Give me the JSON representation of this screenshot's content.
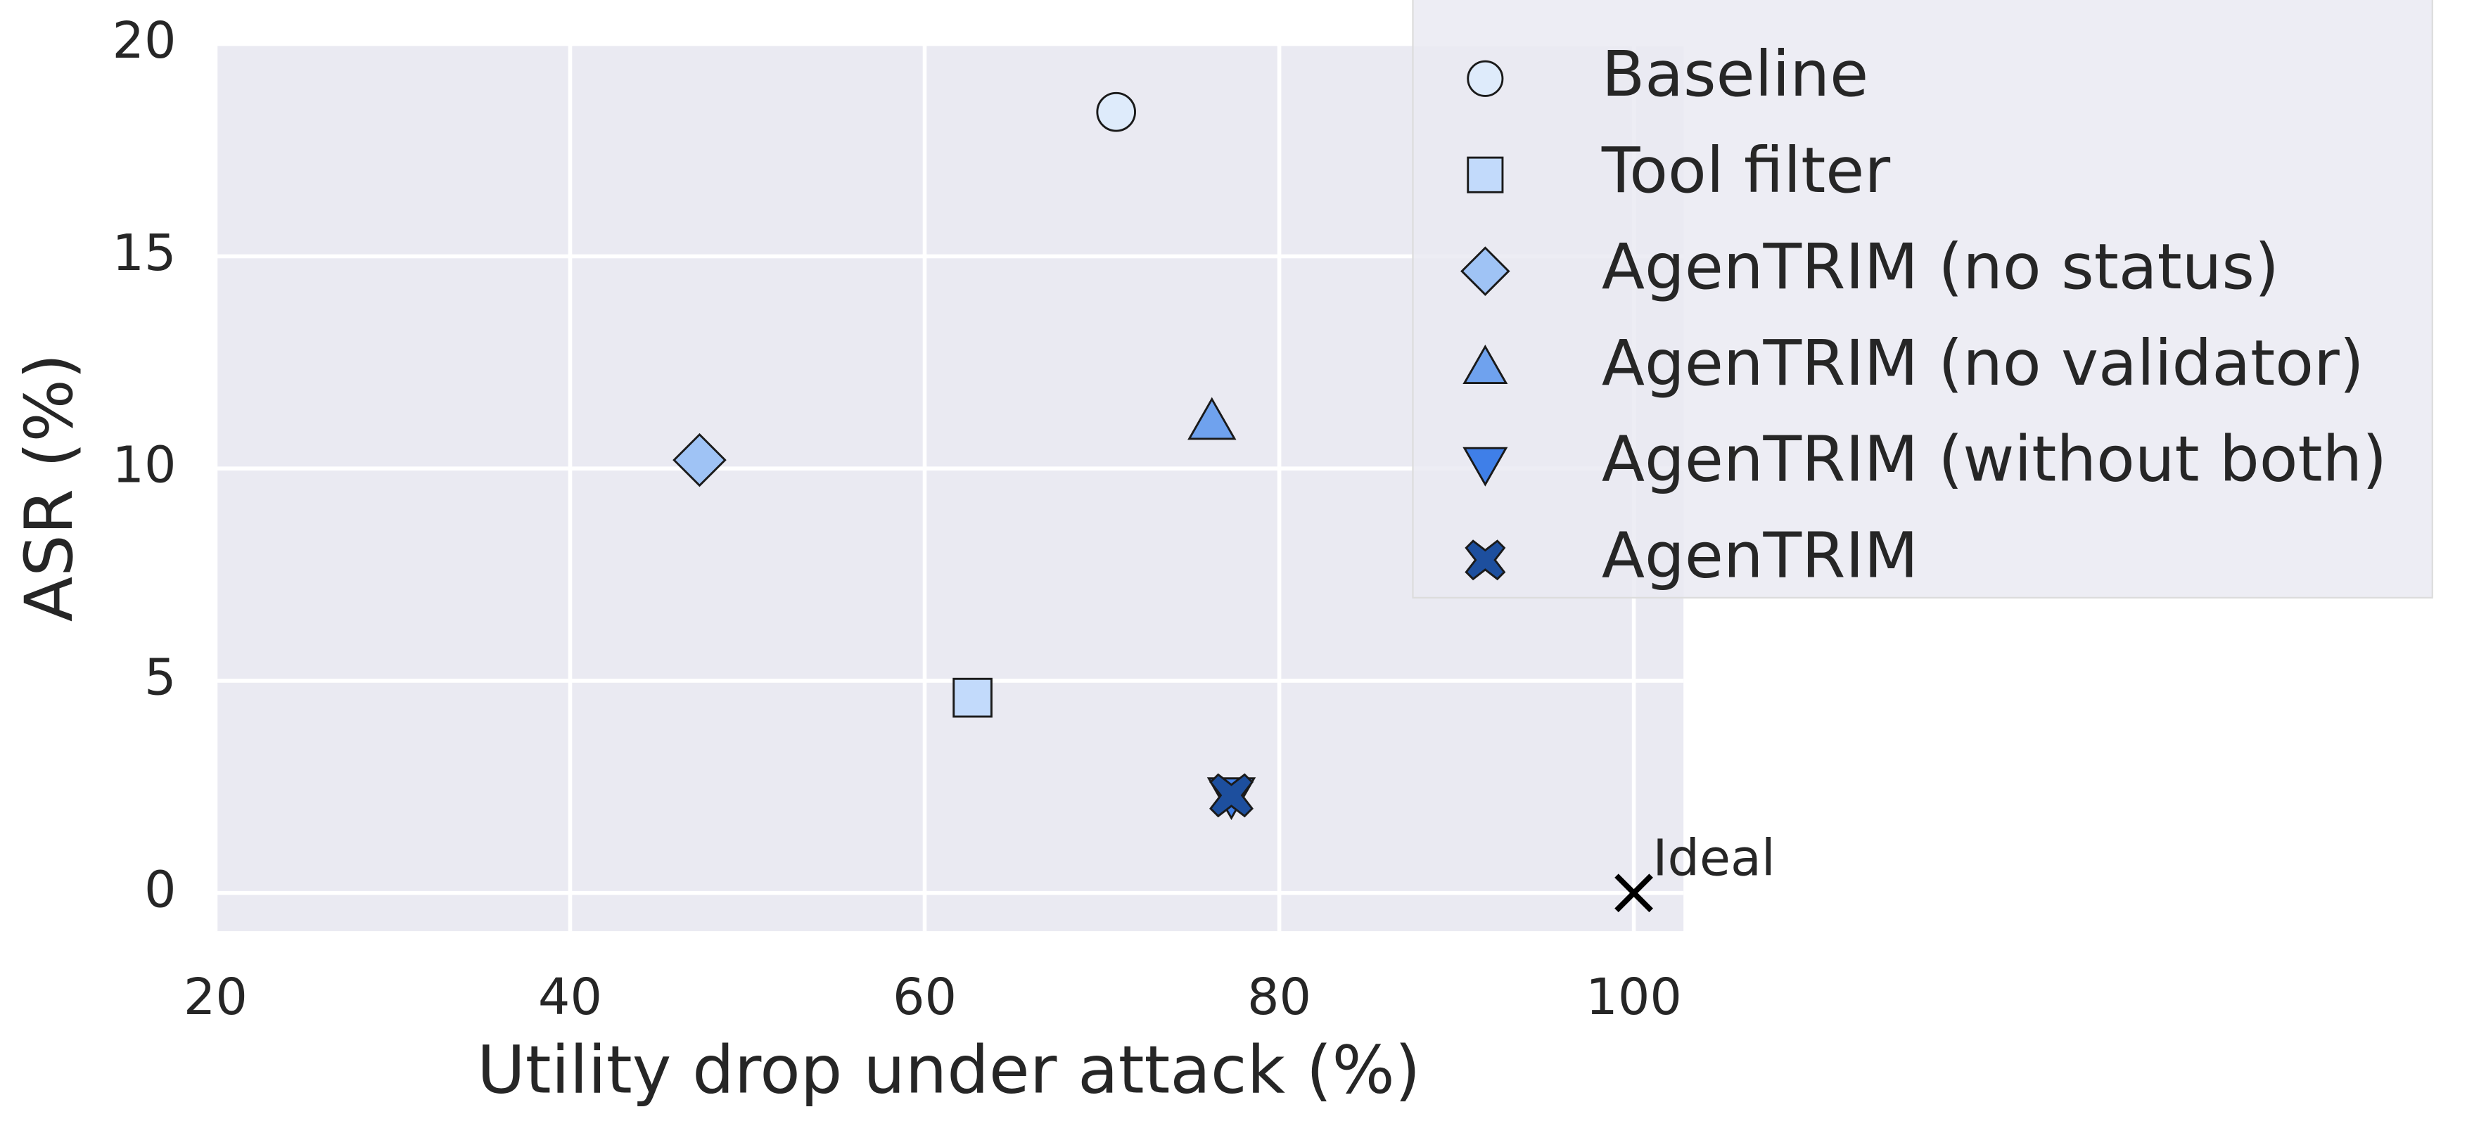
{
  "chart_data": {
    "type": "scatter",
    "x_label": "Utility drop under attack (%)",
    "y_label": "ASR (%)",
    "xlim": [
      20,
      102.8
    ],
    "ylim": [
      -0.9,
      20
    ],
    "xticks": [
      20,
      40,
      60,
      80,
      100
    ],
    "yticks": [
      0,
      5,
      10,
      15,
      20
    ],
    "grid": true,
    "legend_position": "upper right",
    "series": [
      {
        "name": "Baseline",
        "color": "#deebfb",
        "marker": "circle",
        "x": [
          70.8
        ],
        "values": [
          18.4
        ]
      },
      {
        "name": "Tool filter",
        "color": "#c2dafb",
        "marker": "square",
        "x": [
          62.7
        ],
        "values": [
          4.6
        ]
      },
      {
        "name": "AgenTRIM (no status)",
        "color": "#9fc3f5",
        "marker": "diamond",
        "x": [
          47.3
        ],
        "values": [
          10.2
        ]
      },
      {
        "name": "AgenTRIM (no validator)",
        "color": "#6fa2ee",
        "marker": "triangle-up",
        "x": [
          76.2
        ],
        "values": [
          11.1
        ]
      },
      {
        "name": "AgenTRIM (without both)",
        "color": "#3f7fe8",
        "marker": "triangle-down",
        "x": [
          77.3
        ],
        "values": [
          2.3
        ]
      },
      {
        "name": "AgenTRIM",
        "color": "#1d4f9e",
        "marker": "x-filled",
        "x": [
          77.3
        ],
        "values": [
          2.3
        ]
      }
    ],
    "ideal_point": {
      "label": "Ideal",
      "color": "#000000",
      "x": 100,
      "y": 0
    }
  }
}
